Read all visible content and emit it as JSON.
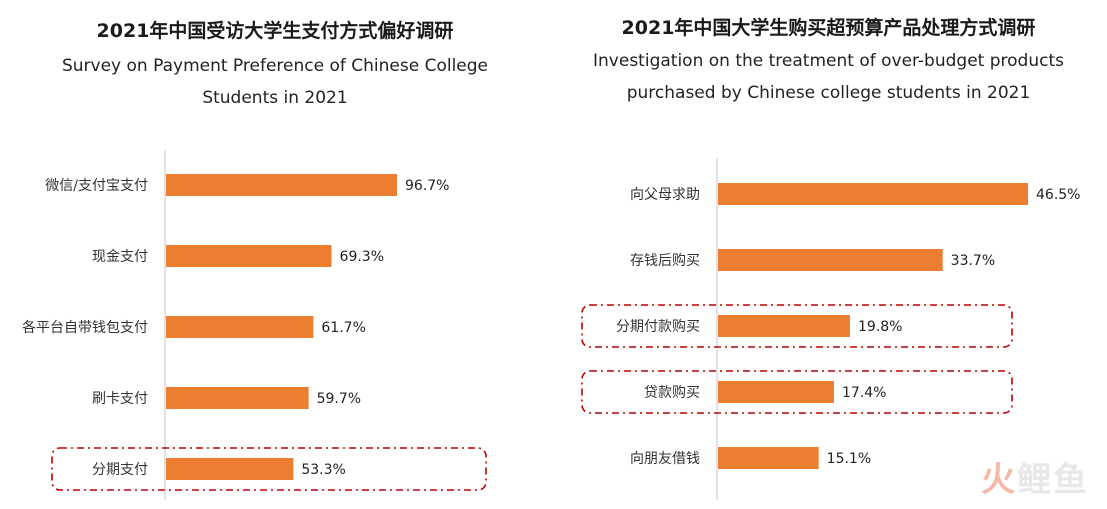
{
  "logo": {
    "mark": "火",
    "text": "鲤鱼"
  },
  "colors": {
    "bar": "#ED7D31",
    "axis": "#D9D9D9",
    "highlight": "#C00000"
  },
  "chart_data": [
    {
      "type": "bar",
      "orientation": "horizontal",
      "title": "2021年中国受访大学生支付方式偏好调研",
      "subtitle": "Survey on Payment Preference of Chinese College Students in 2021",
      "categories": [
        "微信/支付宝支付",
        "现金支付",
        "各平台自带钱包支付",
        "刷卡支付",
        "分期支付"
      ],
      "values": [
        96.7,
        69.3,
        61.7,
        59.7,
        53.3
      ],
      "labels": [
        "96.7%",
        "69.3%",
        "61.7%",
        "59.7%",
        "53.3%"
      ],
      "unit": "%",
      "highlighted": [
        "分期支付"
      ]
    },
    {
      "type": "bar",
      "orientation": "horizontal",
      "title": "2021年中国大学生购买超预算产品处理方式调研",
      "subtitle": "Investigation on the treatment of over-budget products purchased by Chinese college students in 2021",
      "categories": [
        "向父母求助",
        "存钱后购买",
        "分期付款购买",
        "贷款购买",
        "向朋友借钱"
      ],
      "values": [
        46.5,
        33.7,
        19.8,
        17.4,
        15.1
      ],
      "labels": [
        "46.5%",
        "33.7%",
        "19.8%",
        "17.4%",
        "15.1%"
      ],
      "unit": "%",
      "highlighted": [
        "分期付款购买",
        "贷款购买"
      ]
    }
  ]
}
